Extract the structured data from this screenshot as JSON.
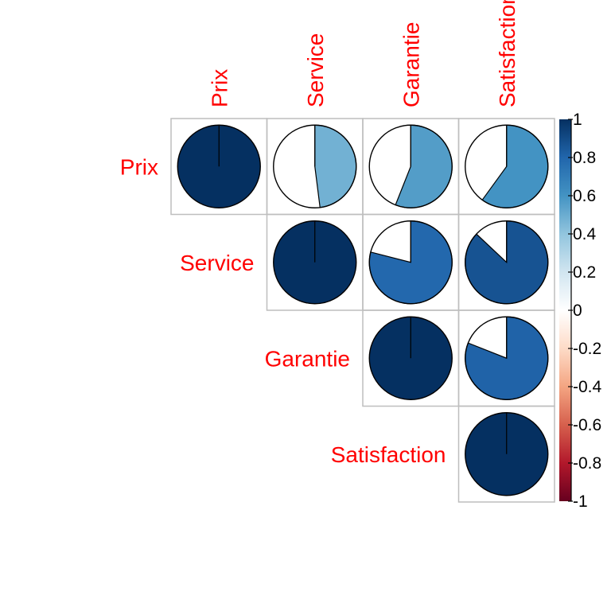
{
  "chart_data": {
    "type": "heatmap",
    "variant": "correlation-pie",
    "layout": "upper-triangle",
    "variables": [
      "Prix",
      "Service",
      "Garantie",
      "Satisfaction"
    ],
    "matrix": [
      [
        1.0,
        0.48,
        0.56,
        0.6
      ],
      [
        0.48,
        1.0,
        0.79,
        0.87
      ],
      [
        0.56,
        0.79,
        1.0,
        0.81
      ],
      [
        0.6,
        0.87,
        0.81,
        1.0
      ]
    ],
    "colorbar": {
      "range": [
        -1,
        1
      ],
      "ticks": [
        "1",
        "0.8",
        "0.6",
        "0.4",
        "0.2",
        "0",
        "-0.2",
        "-0.4",
        "-0.6",
        "-0.8",
        "-1"
      ],
      "colors": [
        "#67001F",
        "#B2182B",
        "#D6604D",
        "#F4A582",
        "#FDDBC7",
        "#FFFFFF",
        "#D1E5F0",
        "#92C5DE",
        "#4393C3",
        "#2166AC",
        "#053061"
      ]
    },
    "label_color": "#ff0000",
    "grid_color": "#bebebe"
  }
}
